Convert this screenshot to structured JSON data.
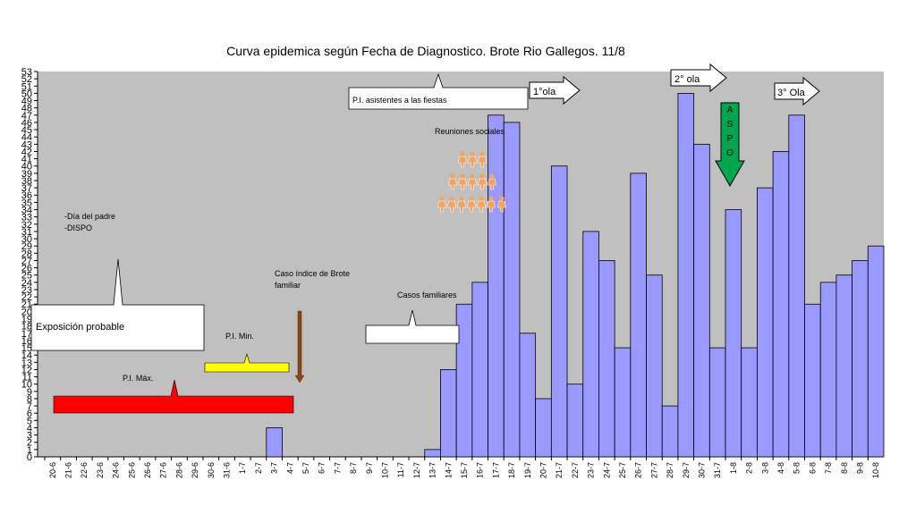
{
  "chart_data": {
    "type": "bar",
    "title": "Curva epidemica según Fecha de Diagnostico. Brote Rio Gallegos. 11/8",
    "categories": [
      "20-6",
      "21-6",
      "22-6",
      "23-6",
      "24-6",
      "25-6",
      "26-6",
      "27-6",
      "28-6",
      "29-6",
      "30-6",
      "31-6",
      "1-7",
      "2-7",
      "3-7",
      "4-7",
      "5-7",
      "6-7",
      "7-7",
      "8-7",
      "9-7",
      "10-7",
      "11-7",
      "12-7",
      "13-7",
      "14-7",
      "15-7",
      "16-7",
      "17-7",
      "18-7",
      "19-7",
      "20-7",
      "21-7",
      "22-7",
      "23-7",
      "24-7",
      "25-7",
      "26-7",
      "27-7",
      "28-7",
      "29-7",
      "30-7",
      "31-7",
      "1-8",
      "2-8",
      "3-8",
      "4-8",
      "5-8",
      "6-8",
      "7-8",
      "8-8",
      "9-8",
      "10-8"
    ],
    "values": [
      null,
      null,
      null,
      null,
      null,
      null,
      null,
      null,
      null,
      null,
      null,
      null,
      null,
      null,
      4,
      null,
      null,
      null,
      null,
      null,
      null,
      null,
      null,
      null,
      1,
      12,
      21,
      24,
      47,
      46,
      17,
      8,
      40,
      10,
      31,
      27,
      15,
      39,
      25,
      7,
      50,
      43,
      15,
      34,
      15,
      37,
      42,
      47,
      21,
      24,
      25,
      27,
      29
    ],
    "color": "#9999ff",
    "ylim": [
      0,
      53
    ],
    "yticks": [
      0,
      1,
      2,
      3,
      4,
      5,
      6,
      7,
      8,
      9,
      10,
      11,
      12,
      13,
      14,
      15,
      16,
      17,
      18,
      19,
      20,
      21,
      22,
      23,
      24,
      25,
      26,
      27,
      28,
      29,
      30,
      31,
      32,
      33,
      34,
      35,
      36,
      37,
      38,
      39,
      40,
      41,
      42,
      43,
      44,
      45,
      46,
      47,
      48,
      49,
      50,
      51,
      52,
      53
    ],
    "annotations": {
      "pi_fiestas": "P.I. asistentes a las fiestas",
      "ola1": "1°ola",
      "ola2": "2° ola",
      "ola3": "3° Ola",
      "reuniones": "Reuniones sociales",
      "aspo": [
        "A",
        "S",
        "P",
        "O"
      ],
      "dia_padre": "-Día del padre",
      "dispo": "-DISPO",
      "caso_indice": [
        "Caso índice de Brote",
        "familiar"
      ],
      "exposicion": "Exposición probable",
      "pi_min": "P.I. Min.",
      "pi_max": "P.I. Máx.",
      "casos_familiares": "Casos familiares"
    }
  }
}
